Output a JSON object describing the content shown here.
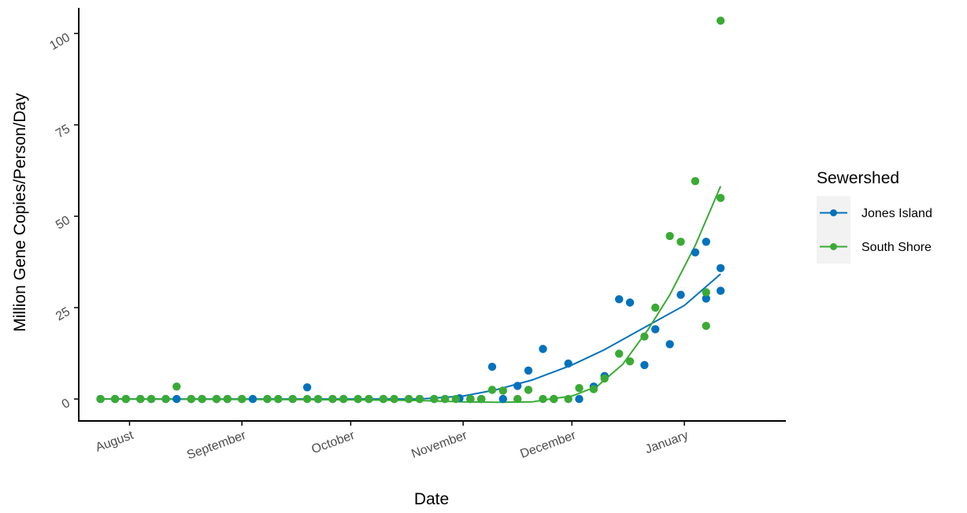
{
  "chart_data": {
    "type": "scatter",
    "xlabel": "Date",
    "ylabel": "Million Gene Copies/Person/Day",
    "ylim": [
      -6,
      107
    ],
    "yticks": [
      0,
      25,
      50,
      75,
      100
    ],
    "ytick_labels": [
      "0",
      "25",
      "50",
      "75",
      "100"
    ],
    "xlim": [
      "2020-07-18",
      "2021-01-29"
    ],
    "xticks": [
      "2020-08-01",
      "2020-09-01",
      "2020-10-01",
      "2020-11-01",
      "2020-12-01",
      "2021-01-01"
    ],
    "xtick_labels": [
      "August",
      "September",
      "October",
      "November",
      "December",
      "January"
    ],
    "grid": false,
    "legend": {
      "title": "Sewershed",
      "position": "right"
    },
    "series": [
      {
        "name": "Jones Island",
        "color": "#0072BD",
        "points": [
          [
            "2020-07-24",
            0
          ],
          [
            "2020-07-28",
            0
          ],
          [
            "2020-07-31",
            0
          ],
          [
            "2020-08-04",
            0
          ],
          [
            "2020-08-07",
            0
          ],
          [
            "2020-08-11",
            0
          ],
          [
            "2020-08-14",
            0
          ],
          [
            "2020-08-18",
            0
          ],
          [
            "2020-08-21",
            0
          ],
          [
            "2020-08-25",
            0
          ],
          [
            "2020-08-28",
            0
          ],
          [
            "2020-09-01",
            0
          ],
          [
            "2020-09-04",
            0
          ],
          [
            "2020-09-08",
            0
          ],
          [
            "2020-09-11",
            0
          ],
          [
            "2020-09-15",
            0
          ],
          [
            "2020-09-19",
            3.2
          ],
          [
            "2020-09-22",
            0
          ],
          [
            "2020-09-26",
            0
          ],
          [
            "2020-09-29",
            0
          ],
          [
            "2020-10-03",
            0
          ],
          [
            "2020-10-06",
            0
          ],
          [
            "2020-10-10",
            0
          ],
          [
            "2020-10-13",
            0
          ],
          [
            "2020-10-17",
            0
          ],
          [
            "2020-10-20",
            0
          ],
          [
            "2020-10-24",
            0
          ],
          [
            "2020-10-27",
            0
          ],
          [
            "2020-10-31",
            0.2
          ],
          [
            "2020-11-03",
            0
          ],
          [
            "2020-11-06",
            0
          ],
          [
            "2020-11-09",
            8.8
          ],
          [
            "2020-11-12",
            0
          ],
          [
            "2020-11-16",
            3.6
          ],
          [
            "2020-11-19",
            7.8
          ],
          [
            "2020-11-23",
            13.7
          ],
          [
            "2020-11-26",
            0
          ],
          [
            "2020-11-30",
            9.7
          ],
          [
            "2020-12-03",
            0
          ],
          [
            "2020-12-07",
            3.4
          ],
          [
            "2020-12-10",
            6.3
          ],
          [
            "2020-12-14",
            27.3
          ],
          [
            "2020-12-17",
            26.4
          ],
          [
            "2020-12-21",
            9.3
          ],
          [
            "2020-12-24",
            19.1
          ],
          [
            "2020-12-28",
            15
          ],
          [
            "2020-12-31",
            28.5
          ],
          [
            "2021-01-04",
            40.1
          ],
          [
            "2021-01-07",
            43
          ],
          [
            "2021-01-07",
            27.5
          ],
          [
            "2021-01-11",
            35.8
          ],
          [
            "2021-01-11",
            29.6
          ]
        ]
      },
      {
        "name": "South Shore",
        "color": "#3AAA35",
        "points": [
          [
            "2020-07-24",
            0
          ],
          [
            "2020-07-28",
            0
          ],
          [
            "2020-07-31",
            0
          ],
          [
            "2020-08-04",
            0
          ],
          [
            "2020-08-07",
            0
          ],
          [
            "2020-08-11",
            0
          ],
          [
            "2020-08-14",
            3.4
          ],
          [
            "2020-08-18",
            0
          ],
          [
            "2020-08-21",
            0
          ],
          [
            "2020-08-25",
            0
          ],
          [
            "2020-08-28",
            0
          ],
          [
            "2020-09-01",
            0
          ],
          [
            "2020-09-08",
            0
          ],
          [
            "2020-09-11",
            0
          ],
          [
            "2020-09-15",
            0
          ],
          [
            "2020-09-19",
            0
          ],
          [
            "2020-09-22",
            0
          ],
          [
            "2020-09-26",
            0
          ],
          [
            "2020-09-29",
            0
          ],
          [
            "2020-10-03",
            0
          ],
          [
            "2020-10-06",
            0
          ],
          [
            "2020-10-10",
            0
          ],
          [
            "2020-10-13",
            0
          ],
          [
            "2020-10-17",
            0
          ],
          [
            "2020-10-20",
            0
          ],
          [
            "2020-10-24",
            0
          ],
          [
            "2020-10-27",
            0
          ],
          [
            "2020-10-30",
            0
          ],
          [
            "2020-11-03",
            0
          ],
          [
            "2020-11-06",
            0
          ],
          [
            "2020-11-09",
            2.5
          ],
          [
            "2020-11-12",
            2.3
          ],
          [
            "2020-11-16",
            0
          ],
          [
            "2020-11-19",
            2.5
          ],
          [
            "2020-11-23",
            0
          ],
          [
            "2020-11-26",
            0
          ],
          [
            "2020-11-30",
            0
          ],
          [
            "2020-12-03",
            3
          ],
          [
            "2020-12-07",
            2.7
          ],
          [
            "2020-12-10",
            5.6
          ],
          [
            "2020-12-14",
            12.4
          ],
          [
            "2020-12-17",
            10.3
          ],
          [
            "2020-12-21",
            17.1
          ],
          [
            "2020-12-24",
            25
          ],
          [
            "2020-12-28",
            44.6
          ],
          [
            "2020-12-31",
            43
          ],
          [
            "2021-01-04",
            59.6
          ],
          [
            "2021-01-07",
            29.2
          ],
          [
            "2021-01-07",
            20
          ],
          [
            "2021-01-11",
            55
          ],
          [
            "2021-01-11",
            103.5
          ]
        ]
      }
    ],
    "fits": [
      {
        "name": "Jones Island",
        "color": "#0072BD",
        "points": [
          [
            "2020-07-24",
            0
          ],
          [
            "2020-09-01",
            0
          ],
          [
            "2020-10-01",
            0
          ],
          [
            "2020-10-20",
            0
          ],
          [
            "2020-11-01",
            0.8
          ],
          [
            "2020-11-10",
            2.5
          ],
          [
            "2020-11-20",
            5.2
          ],
          [
            "2020-12-01",
            9.3
          ],
          [
            "2020-12-10",
            13.5
          ],
          [
            "2020-12-20",
            19
          ],
          [
            "2021-01-01",
            25.6
          ],
          [
            "2021-01-11",
            34.2
          ]
        ]
      },
      {
        "name": "South Shore",
        "color": "#3AAA35",
        "points": [
          [
            "2020-07-24",
            0
          ],
          [
            "2020-09-01",
            -0.1
          ],
          [
            "2020-10-01",
            -0.2
          ],
          [
            "2020-10-20",
            -0.4
          ],
          [
            "2020-11-01",
            -0.8
          ],
          [
            "2020-11-10",
            -0.9
          ],
          [
            "2020-11-20",
            -0.8
          ],
          [
            "2020-11-25",
            0
          ],
          [
            "2020-12-01",
            0.8
          ],
          [
            "2020-12-08",
            3.5
          ],
          [
            "2020-12-15",
            9.5
          ],
          [
            "2020-12-22",
            19
          ],
          [
            "2020-12-28",
            28.5
          ],
          [
            "2021-01-04",
            42
          ],
          [
            "2021-01-11",
            58.2
          ]
        ]
      }
    ]
  }
}
